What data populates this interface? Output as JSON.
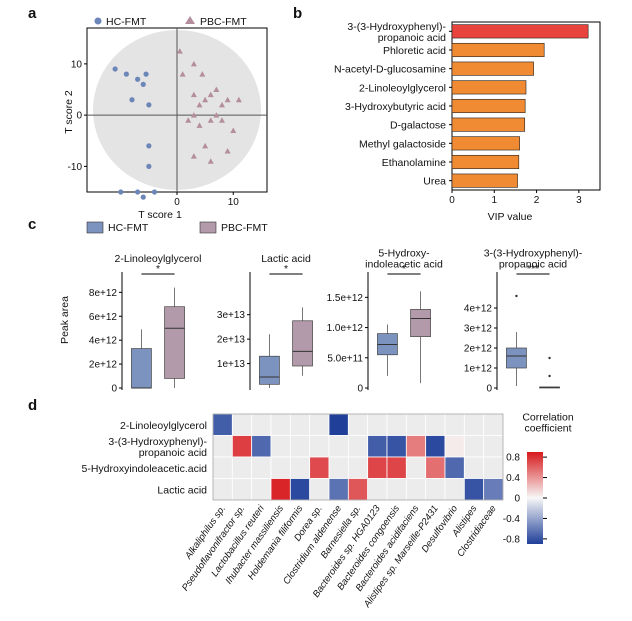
{
  "panel_labels": [
    "a",
    "b",
    "c",
    "d"
  ],
  "colors": {
    "hc": "#7d93bf",
    "pbc": "#b39aaa",
    "scatter_hc": "#6d86b8",
    "scatter_pbc": "#b48e9c",
    "ellipse": "#e4e4e4",
    "vip_top": "#e8433c",
    "vip": "#f08a33",
    "heat_pos": "#d7191c",
    "heat_neg": "#1f3f99",
    "heat_empty": "#ececec"
  },
  "chart_data": [
    {
      "id": "a",
      "type": "scatter",
      "title": "",
      "xlabel": "T score 1",
      "ylabel": "T score 2",
      "xlim": [
        -16,
        16
      ],
      "ylim": [
        -15,
        17
      ],
      "xticks": [
        0,
        10
      ],
      "yticks": [
        10,
        0,
        -10
      ],
      "legend_position": "top",
      "series": [
        {
          "name": "HC-FMT",
          "marker": "circle",
          "color": "#6d86b8",
          "points": [
            [
              -11,
              9
            ],
            [
              -9,
              8
            ],
            [
              -7,
              7
            ],
            [
              -6,
              6
            ],
            [
              -5.5,
              8
            ],
            [
              -5,
              2
            ],
            [
              -8,
              3
            ],
            [
              -5,
              -6
            ],
            [
              -10,
              -15
            ],
            [
              -7,
              -15
            ],
            [
              -6,
              -16
            ],
            [
              -4,
              -15
            ],
            [
              -5,
              -10
            ]
          ]
        },
        {
          "name": "PBC-FMT",
          "marker": "triangle",
          "color": "#b48e9c",
          "points": [
            [
              0.5,
              12.5
            ],
            [
              1,
              8
            ],
            [
              3,
              10
            ],
            [
              4.5,
              8
            ],
            [
              3,
              4
            ],
            [
              4,
              2
            ],
            [
              5,
              3
            ],
            [
              6,
              4
            ],
            [
              7,
              5
            ],
            [
              8,
              2
            ],
            [
              9,
              3
            ],
            [
              3,
              0
            ],
            [
              2,
              -1
            ],
            [
              4,
              -2
            ],
            [
              6,
              -1
            ],
            [
              7,
              0
            ],
            [
              8,
              -1
            ],
            [
              5,
              -6
            ],
            [
              3,
              -8
            ],
            [
              6,
              -9
            ],
            [
              9,
              -7
            ],
            [
              10,
              -3
            ],
            [
              11,
              3
            ]
          ]
        }
      ]
    },
    {
      "id": "b",
      "type": "bar",
      "orientation": "horizontal",
      "title": "",
      "xlabel": "VIP value",
      "ylabel": "",
      "xlim": [
        0,
        3.5
      ],
      "xticks": [
        0,
        1,
        2,
        3
      ],
      "categories": [
        "3-(3-Hydroxyphenyl)-\npropanoic acid",
        "Phloretic acid",
        "N-acetyl-D-glucosamine",
        "2-Linoleoylglycerol",
        "3-Hydroxybutyric acid",
        "D-galactose",
        "Methyl galactoside",
        "Ethanolamine",
        "Urea"
      ],
      "values": [
        3.22,
        2.18,
        1.93,
        1.75,
        1.73,
        1.72,
        1.6,
        1.58,
        1.55
      ]
    },
    {
      "id": "c",
      "type": "box",
      "ylabel": "Peak area",
      "legend": [
        "HC-FMT",
        "PBC-FMT"
      ],
      "legend_position": "top-left",
      "panels": [
        {
          "title": "2-Linoleoylglycerol",
          "ymax": 9200000000000.0,
          "ticks": [
            {
              "v": 0,
              "l": "0"
            },
            {
              "v": 2000000000000.0,
              "l": "2e+12"
            },
            {
              "v": 4000000000000.0,
              "l": "4e+12"
            },
            {
              "v": 6000000000000.0,
              "l": "6e+12"
            },
            {
              "v": 8000000000000.0,
              "l": "8e+12"
            }
          ],
          "significance": "*",
          "boxes": [
            {
              "group": "HC-FMT",
              "min": 0,
              "q1": 0,
              "median": 0,
              "q3": 3300000000000.0,
              "max": 4900000000000.0,
              "outliers": []
            },
            {
              "group": "PBC-FMT",
              "min": 0,
              "q1": 800000000000.0,
              "median": 5000000000000.0,
              "q3": 6800000000000.0,
              "max": 8400000000000.0,
              "outliers": []
            }
          ]
        },
        {
          "title": "Lactic acid",
          "ymax": 45000000000000.0,
          "ticks": [
            {
              "v": 10000000000000.0,
              "l": "1e+13"
            },
            {
              "v": 20000000000000.0,
              "l": "2e+13"
            },
            {
              "v": 30000000000000.0,
              "l": "3e+13"
            }
          ],
          "significance": "*",
          "boxes": [
            {
              "group": "HC-FMT",
              "min": 0,
              "q1": 1500000000000.0,
              "median": 4500000000000.0,
              "q3": 13000000000000.0,
              "max": 22000000000000.0,
              "outliers": []
            },
            {
              "group": "PBC-FMT",
              "min": 5000000000000.0,
              "q1": 9000000000000.0,
              "median": 15000000000000.0,
              "q3": 27500000000000.0,
              "max": 33000000000000.0,
              "outliers": []
            }
          ]
        },
        {
          "title": "5-Hydroxy-\nindoleacetic acid",
          "ymax": 1820000000000.0,
          "ticks": [
            {
              "v": 0,
              "l": "0"
            },
            {
              "v": 500000000000.0,
              "l": "5.0e+11"
            },
            {
              "v": 1000000000000.0,
              "l": "1.0e+12"
            },
            {
              "v": 1500000000000.0,
              "l": "1.5e+12"
            }
          ],
          "significance": "*",
          "boxes": [
            {
              "group": "HC-FMT",
              "min": 200000000000.0,
              "q1": 550000000000.0,
              "median": 720000000000.0,
              "q3": 900000000000.0,
              "max": 1050000000000.0,
              "outliers": []
            },
            {
              "group": "PBC-FMT",
              "min": 80000000000.0,
              "q1": 850000000000.0,
              "median": 1150000000000.0,
              "q3": 1300000000000.0,
              "max": 1600000000000.0,
              "outliers": []
            }
          ]
        },
        {
          "title": "3-(3-Hydroxyphenyl)-\npropanoic acid",
          "ymax": 5500000000000.0,
          "ticks": [
            {
              "v": 0,
              "l": "0"
            },
            {
              "v": 1000000000000.0,
              "l": "1e+12"
            },
            {
              "v": 2000000000000.0,
              "l": "2e+12"
            },
            {
              "v": 3000000000000.0,
              "l": "3e+12"
            },
            {
              "v": 4000000000000.0,
              "l": "4e+12"
            }
          ],
          "significance": "***",
          "boxes": [
            {
              "group": "HC-FMT",
              "min": 100000000000.0,
              "q1": 1000000000000.0,
              "median": 1600000000000.0,
              "q3": 2000000000000.0,
              "max": 2800000000000.0,
              "outliers": [
                4600000000000.0
              ]
            },
            {
              "group": "PBC-FMT",
              "min": 0,
              "q1": 0,
              "median": 40000000000.0,
              "q3": 50000000000.0,
              "max": 50000000000.0,
              "outliers": [
                600000000000.0,
                1500000000000.0
              ]
            }
          ]
        }
      ]
    },
    {
      "id": "d",
      "type": "heatmap",
      "rows": [
        "2-Linoleoylglycerol",
        "3-(3-Hydroxyphenyl)-\npropanoic acid",
        "5-Hydroxyindoleacetic.acid",
        "Lactic acid"
      ],
      "columns": [
        "Alkaliphilus sp.",
        "Pseudoflavonifractor sp.",
        "Lactobacillus reuteri",
        "Ihubacter massiliensis",
        "Holdemania filiformis",
        "Dorea sp.",
        "Clostridium aldenense",
        "Barnesiella sp.",
        "Bacteroides sp. HGA0123",
        "Bacteroides congoensis",
        "Bacteroides acidifaciens",
        "Alistipes sp. Marseille-P2431",
        "Desulfovibrio",
        "Alistipes",
        "Clostridiaceae"
      ],
      "values": [
        [
          -0.75,
          null,
          null,
          null,
          null,
          null,
          -0.9,
          null,
          null,
          null,
          null,
          null,
          null,
          null,
          null
        ],
        [
          null,
          0.75,
          -0.7,
          null,
          null,
          null,
          null,
          null,
          -0.75,
          -0.8,
          0.5,
          -0.85,
          0.05,
          null,
          null
        ],
        [
          null,
          null,
          null,
          null,
          null,
          0.7,
          null,
          null,
          0.72,
          0.72,
          null,
          0.55,
          -0.7,
          null,
          null
        ],
        [
          null,
          null,
          null,
          0.85,
          -0.85,
          null,
          -0.65,
          0.65,
          null,
          null,
          null,
          null,
          null,
          -0.8,
          -0.6
        ]
      ],
      "colorbar": {
        "title": "Correlation\ncoefficient",
        "ticks": [
          0.8,
          0.4,
          0,
          -0.4,
          -0.8
        ],
        "tick_labels": [
          "0.8",
          "0.4",
          "0",
          "-0.4",
          "-0.8"
        ],
        "range": [
          -0.9,
          0.9
        ]
      }
    }
  ]
}
